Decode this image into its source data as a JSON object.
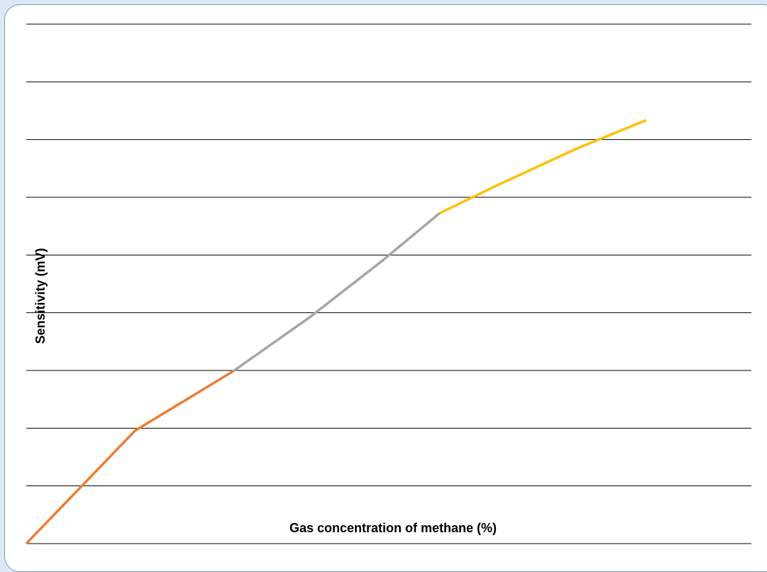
{
  "chart_data": {
    "type": "line",
    "title": "",
    "xlabel": "Gas concentration of methane (%)",
    "ylabel": "Sensitivity (mV)",
    "xlim": [
      0,
      100
    ],
    "ylim": [
      0,
      100
    ],
    "grid": true,
    "legend": "none",
    "series": [
      {
        "color": "#ed7d31",
        "x": [
          0,
          15,
          28.5
        ],
        "y": [
          0,
          20,
          30.5
        ]
      },
      {
        "color": "#a5a5a5",
        "x": [
          28.5,
          39,
          49,
          57
        ],
        "y": [
          30.5,
          40,
          50,
          58.5
        ]
      },
      {
        "color": "#ffc000",
        "x": [
          57,
          65,
          76,
          85.5
        ],
        "y": [
          58.5,
          63.5,
          70,
          75
        ]
      }
    ]
  },
  "colors": {
    "background": "#dbe8f6",
    "panel": "#ffffff",
    "border": "#7f9bb8",
    "gridline": "#000000"
  }
}
